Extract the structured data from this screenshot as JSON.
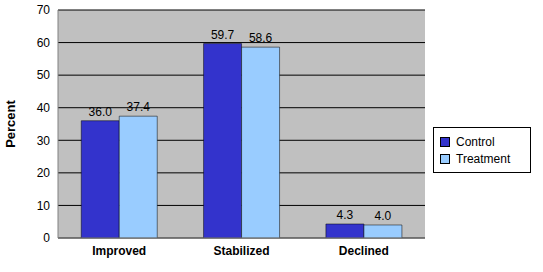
{
  "chart_data": {
    "type": "bar",
    "y_label": "Percent",
    "categories": [
      "Improved",
      "Stabilized",
      "Declined"
    ],
    "series": [
      {
        "name": "Control",
        "color": "#3333CC",
        "values": [
          36.0,
          59.7,
          4.3
        ],
        "value_labels": [
          "36.0",
          "59.7",
          "4.3"
        ]
      },
      {
        "name": "Treatment",
        "color": "#99CCFF",
        "values": [
          37.4,
          58.6,
          4.0
        ],
        "value_labels": [
          "37.4",
          "58.6",
          "4.0"
        ]
      }
    ],
    "ylim": [
      0,
      70
    ],
    "yticks": [
      0,
      10,
      20,
      30,
      40,
      50,
      60,
      70
    ],
    "grid": true,
    "legend": "right",
    "data_labels": true
  }
}
